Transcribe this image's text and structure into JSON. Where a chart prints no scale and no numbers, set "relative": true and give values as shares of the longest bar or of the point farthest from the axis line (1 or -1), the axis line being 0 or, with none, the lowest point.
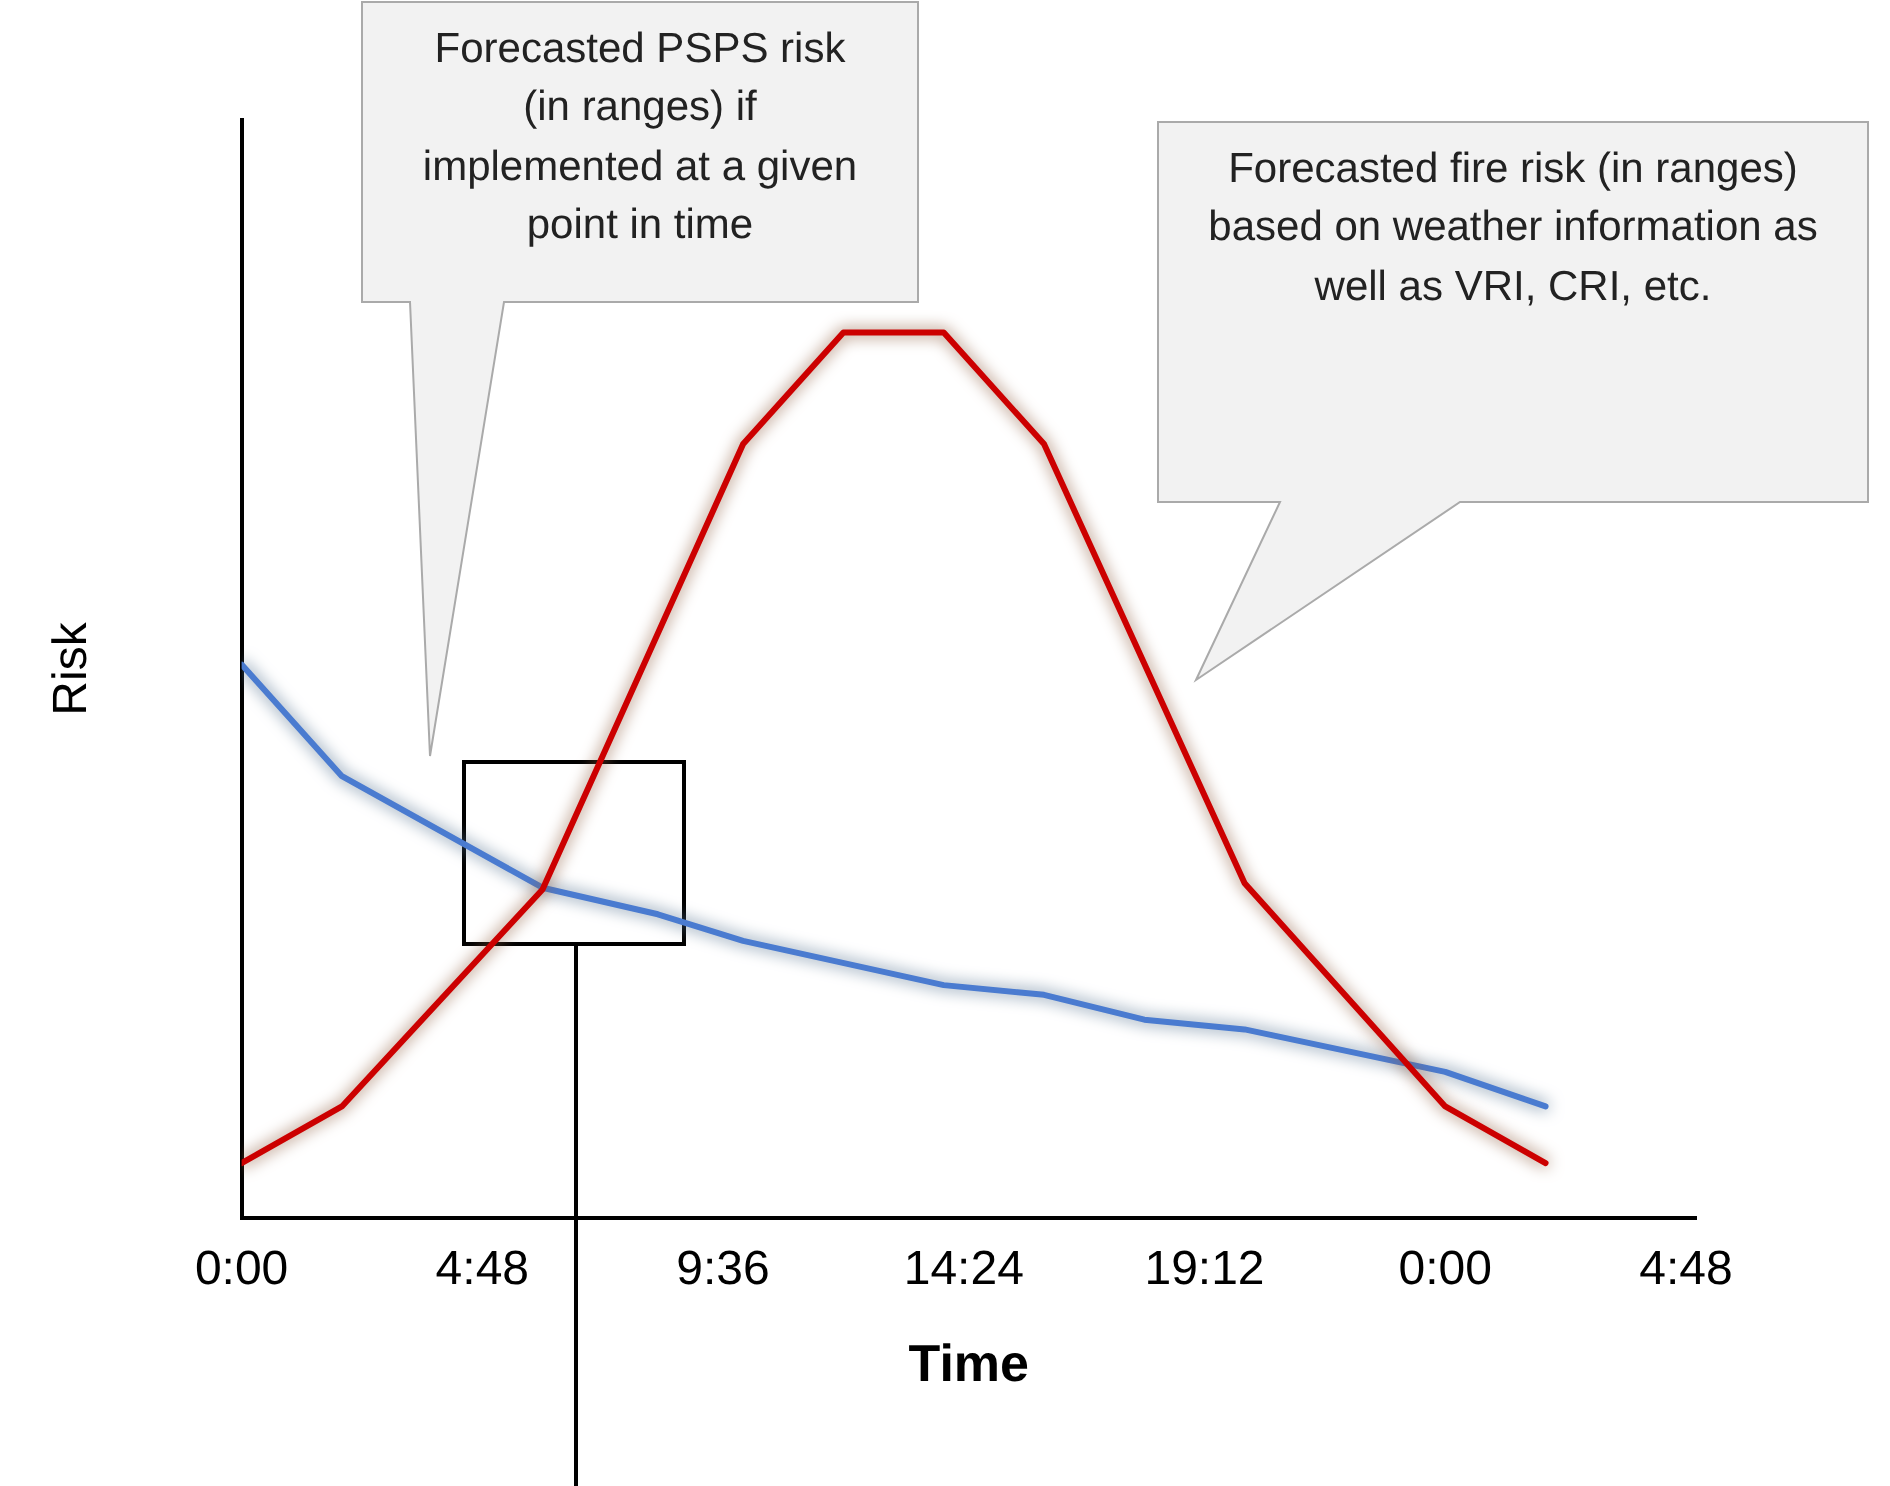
{
  "chart_data": {
    "type": "line",
    "relative": true,
    "xlabel": "Time",
    "ylabel": "Risk",
    "xlim": [
      "--01-01T00:00",
      "--01-02T05:00"
    ],
    "xticks": [
      {
        "value": "--01-01T00:00",
        "label": "0:00"
      },
      {
        "value": "--01-01T04:48",
        "label": "4:48"
      },
      {
        "value": "--01-01T09:36",
        "label": "9:36"
      },
      {
        "value": "--01-01T14:24",
        "label": "14:24"
      },
      {
        "value": "--01-01T19:12",
        "label": "19:12"
      },
      {
        "value": "--01-02T00:00",
        "label": "0:00"
      },
      {
        "value": "--01-02T04:48",
        "label": "4:48"
      }
    ],
    "series": [
      {
        "color": "#cc0000",
        "x": [
          "--01-01T00:00",
          "--01-01T02:00",
          "--01-01T06:00",
          "--01-01T10:00",
          "--01-01T12:00",
          "--01-01T14:00",
          "--01-01T16:00",
          "--01-01T20:00",
          "--01-02T00:00",
          "--01-02T02:00"
        ],
        "values": [
          0.062,
          0.126,
          0.371,
          0.874,
          1,
          1,
          0.874,
          0.378,
          0.126,
          0.062
        ]
      },
      {
        "color": "#4a7bd0",
        "x": [
          "--01-01T00:00",
          "--01-01T02:00",
          "--01-01T06:00",
          "--01-01T08:18",
          "--01-01T10:00",
          "--01-01T14:00",
          "--01-01T16:00",
          "--01-01T18:00",
          "--01-01T20:00",
          "--01-02T00:00",
          "--01-02T02:00"
        ],
        "values": [
          0.625,
          0.499,
          0.373,
          0.343,
          0.313,
          0.263,
          0.252,
          0.224,
          0.213,
          0.165,
          0.126
        ]
      }
    ],
    "annotations": [
      "Forecasted PSPS risk (in ranges) if implemented at a given point in time",
      "Forecasted fire risk (in ranges) based on weather information as well as VRI, CRI, etc."
    ],
    "grid": false,
    "legend": false,
    "marker": "none",
    "line_style": "solid"
  }
}
